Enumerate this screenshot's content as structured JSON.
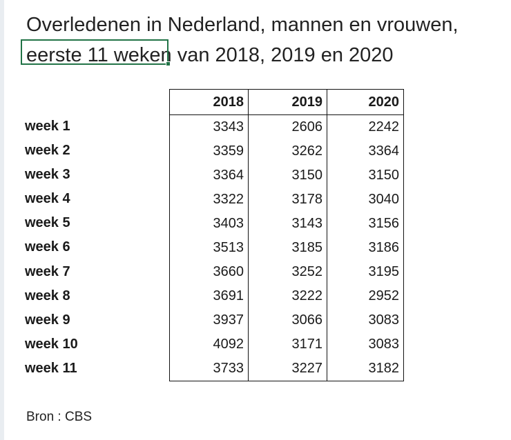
{
  "title": {
    "line1": "Overledenen in Nederland, mannen en vrouwen,",
    "line2": "eerste 11 weken van 2018, 2019 en 2020"
  },
  "table": {
    "columns": [
      "2018",
      "2019",
      "2020"
    ],
    "rows": [
      {
        "label": "week 1",
        "values": [
          "3343",
          "2606",
          "2242"
        ]
      },
      {
        "label": "week 2",
        "values": [
          "3359",
          "3262",
          "3364"
        ]
      },
      {
        "label": "week 3",
        "values": [
          "3364",
          "3150",
          "3150"
        ]
      },
      {
        "label": "week 4",
        "values": [
          "3322",
          "3178",
          "3040"
        ]
      },
      {
        "label": "week 5",
        "values": [
          "3403",
          "3143",
          "3156"
        ]
      },
      {
        "label": "week 6",
        "values": [
          "3513",
          "3185",
          "3186"
        ]
      },
      {
        "label": "week 7",
        "values": [
          "3660",
          "3252",
          "3195"
        ]
      },
      {
        "label": "week 8",
        "values": [
          "3691",
          "3222",
          "2952"
        ]
      },
      {
        "label": "week 9",
        "values": [
          "3937",
          "3066",
          "3083"
        ]
      },
      {
        "label": "week 10",
        "values": [
          "4092",
          "3171",
          "3083"
        ]
      },
      {
        "label": "week 11",
        "values": [
          "3733",
          "3227",
          "3182"
        ]
      }
    ]
  },
  "source": "Bron : CBS",
  "colors": {
    "selection": "#217346",
    "border": "#111111"
  }
}
